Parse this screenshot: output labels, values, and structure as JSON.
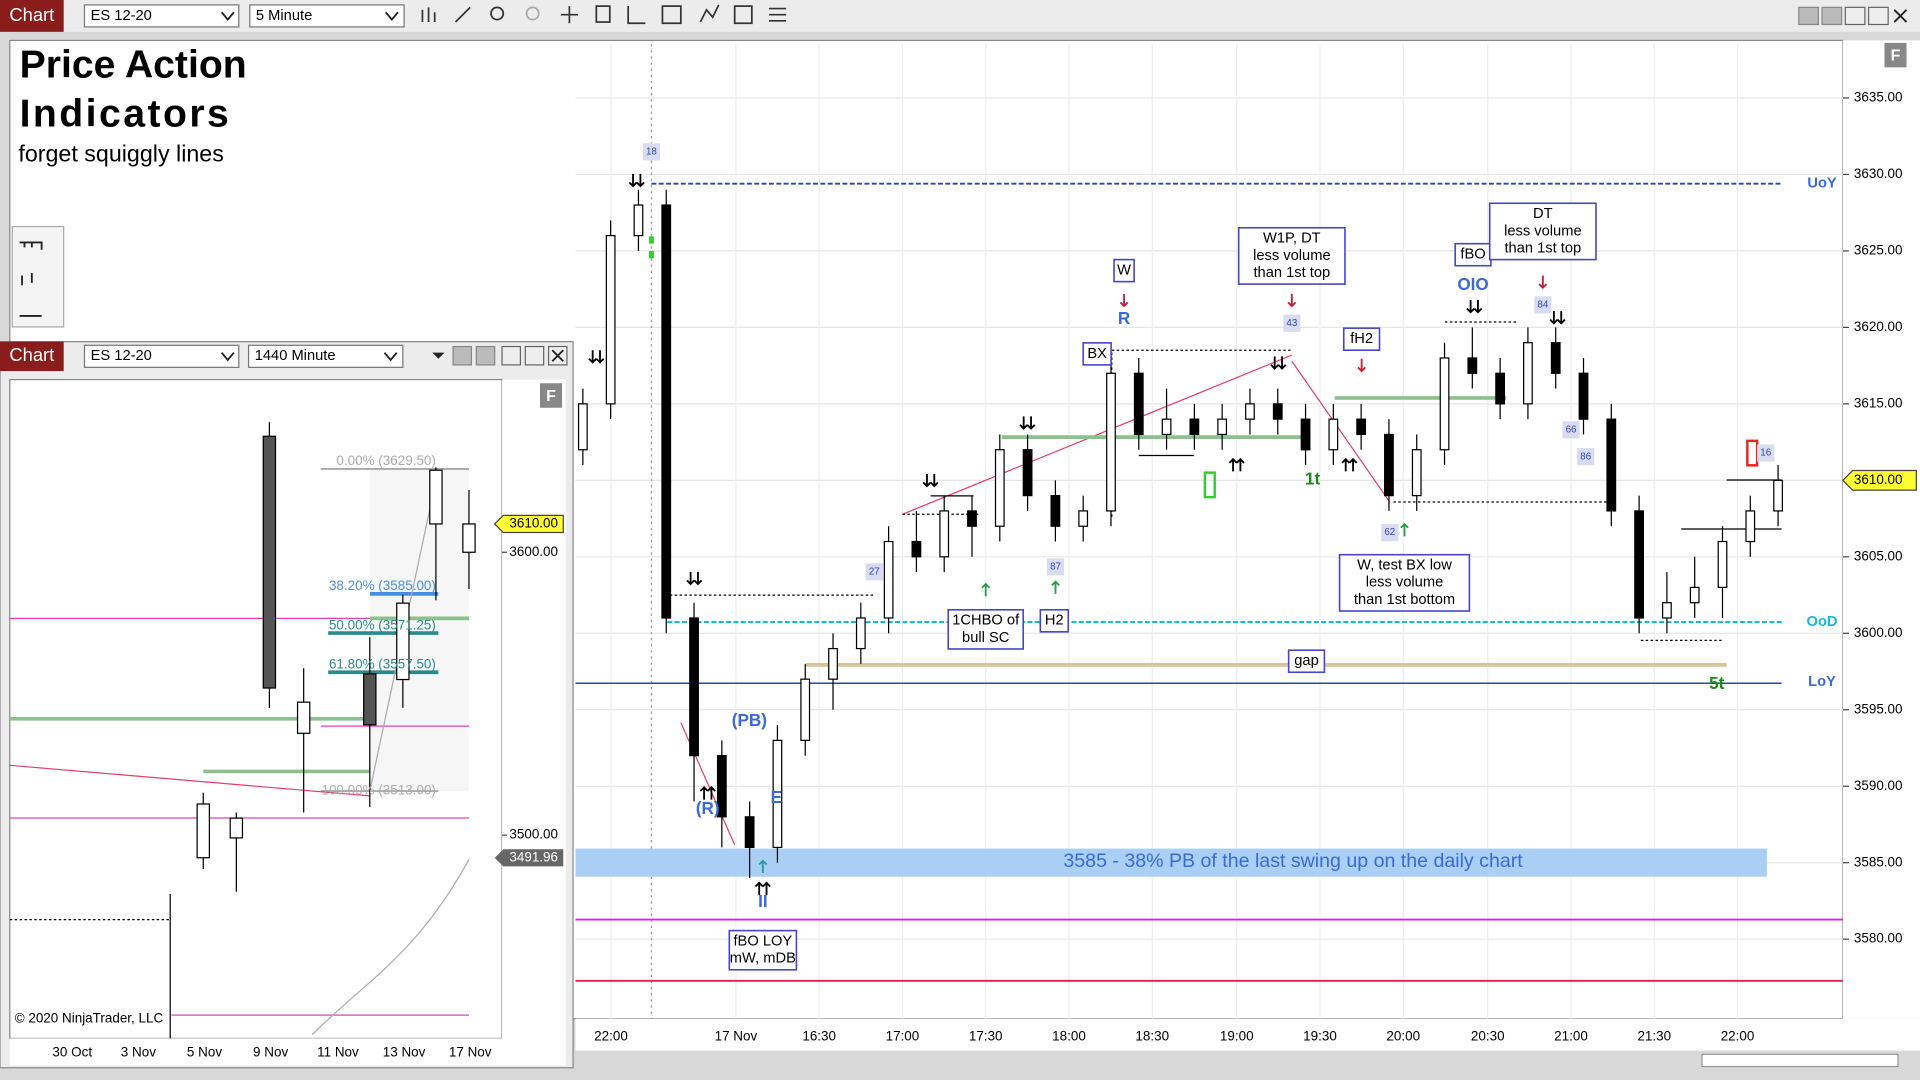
{
  "toolbar": {
    "tab": "Chart",
    "instrument": "ES 12-20",
    "interval": "5 Minute"
  },
  "main": {
    "title": [
      "Price Action",
      "Indicators"
    ],
    "subtitle": "forget squiggly lines",
    "f_button": "F",
    "yticks": [
      "3635.00",
      "3630.00",
      "3625.00",
      "3620.00",
      "3615.00",
      "3610.00",
      "3605.00",
      "3600.00",
      "3595.00",
      "3590.00",
      "3585.00",
      "3580.00"
    ],
    "xticks": [
      "22:00",
      "17 Nov",
      "16:30",
      "17:00",
      "17:30",
      "18:00",
      "18:30",
      "19:00",
      "19:30",
      "20:00",
      "20:30",
      "21:00",
      "21:30",
      "22:00"
    ],
    "price_marker": "3610.00",
    "levels": [
      "UoY",
      "OoD",
      "LoY"
    ],
    "band": "3585 - 38% PB of the last swing up on the daily chart",
    "annotations": [
      [
        "W"
      ],
      [
        "R"
      ],
      [
        "BX"
      ],
      [
        "W1P, DT",
        "less volume",
        "than 1st top"
      ],
      [
        "fH2"
      ],
      [
        "fBO"
      ],
      [
        "OIO"
      ],
      [
        "DT",
        "less volume",
        "than 1st top"
      ],
      [
        "W, test BX low",
        "less volume",
        "than 1st bottom"
      ],
      [
        "1CHBO of",
        "bull SC"
      ],
      [
        "H2"
      ],
      [
        "gap"
      ],
      [
        "(PB)"
      ],
      [
        "(R)"
      ],
      [
        "E"
      ],
      [
        "II"
      ],
      [
        "fBO LOY",
        "mW, mDB"
      ],
      [
        "1t"
      ],
      [
        "5t"
      ]
    ],
    "counters": [
      "18",
      "43",
      "84",
      "66",
      "86",
      "87",
      "27",
      "62",
      "16"
    ],
    "candles": [
      [
        3612,
        3616,
        3611,
        3615
      ],
      [
        3615,
        3627,
        3614,
        3626
      ],
      [
        3626,
        3629,
        3625,
        3628
      ],
      [
        3628,
        3629,
        3600,
        3601
      ],
      [
        3601,
        3602,
        3589,
        3592
      ],
      [
        3592,
        3593,
        3586,
        3588
      ],
      [
        3588,
        3589,
        3584,
        3586
      ],
      [
        3586,
        3594,
        3585,
        3593
      ],
      [
        3593,
        3598,
        3592,
        3597
      ],
      [
        3597,
        3600,
        3595,
        3599
      ],
      [
        3599,
        3602,
        3598,
        3601
      ],
      [
        3601,
        3607,
        3600,
        3606
      ],
      [
        3606,
        3608,
        3604,
        3605
      ],
      [
        3605,
        3609,
        3604,
        3608
      ],
      [
        3608,
        3609,
        3605,
        3607
      ],
      [
        3607,
        3613,
        3606,
        3612
      ],
      [
        3612,
        3613,
        3608,
        3609
      ],
      [
        3609,
        3610,
        3606,
        3607
      ],
      [
        3607,
        3609,
        3606,
        3608
      ],
      [
        3608,
        3618,
        3607,
        3617
      ],
      [
        3617,
        3618,
        3612,
        3613
      ],
      [
        3613,
        3616,
        3612,
        3614
      ],
      [
        3614,
        3615,
        3612,
        3613
      ],
      [
        3613,
        3615,
        3612,
        3614
      ],
      [
        3614,
        3616,
        3613,
        3615
      ],
      [
        3615,
        3616,
        3613,
        3614
      ],
      [
        3614,
        3615,
        3611,
        3612
      ],
      [
        3612,
        3615,
        3611,
        3614
      ],
      [
        3614,
        3615,
        3612,
        3613
      ],
      [
        3613,
        3614,
        3608,
        3609
      ],
      [
        3609,
        3613,
        3608,
        3612
      ],
      [
        3612,
        3619,
        3611,
        3618
      ],
      [
        3618,
        3620,
        3616,
        3617
      ],
      [
        3617,
        3618,
        3614,
        3615
      ],
      [
        3615,
        3620,
        3614,
        3619
      ],
      [
        3619,
        3620,
        3616,
        3617
      ],
      [
        3617,
        3618,
        3613,
        3614
      ],
      [
        3614,
        3615,
        3607,
        3608
      ],
      [
        3608,
        3609,
        3600,
        3601
      ],
      [
        3601,
        3604,
        3600,
        3602
      ],
      [
        3602,
        3605,
        3601,
        3603
      ],
      [
        3603,
        3607,
        3601,
        3606
      ],
      [
        3606,
        3609,
        3605,
        3608
      ],
      [
        3608,
        3611,
        3607,
        3610
      ]
    ]
  },
  "daily": {
    "tab": "Chart",
    "instrument": "ES 12-20",
    "interval": "1440 Minute",
    "f_button": "F",
    "fib": [
      "0.00% (3629.50)",
      "38.20% (3585.00)",
      "50.00% (3571.25)",
      "61.80% (3557.50)",
      "100.00% (3513.00)"
    ],
    "yticks": [
      "3600.00",
      "3500.00"
    ],
    "price_marker": "3610.00",
    "last_marker": "3491.96",
    "xticks": [
      "30 Oct",
      "3 Nov",
      "5 Nov",
      "9 Nov",
      "11 Nov",
      "13 Nov",
      "17 Nov"
    ],
    "copyright": "© 2020 NinjaTrader, LLC",
    "candles": [
      [
        3492,
        3515,
        3488,
        3511
      ],
      [
        3499,
        3508,
        3480,
        3506
      ],
      [
        3641,
        3646,
        3545,
        3552
      ],
      [
        3536,
        3559,
        3508,
        3547
      ],
      [
        3557,
        3570,
        3510,
        3539
      ],
      [
        3555,
        3585,
        3545,
        3582
      ],
      [
        3610,
        3630,
        3583,
        3629
      ],
      [
        3600,
        3622,
        3587,
        3610
      ]
    ]
  }
}
